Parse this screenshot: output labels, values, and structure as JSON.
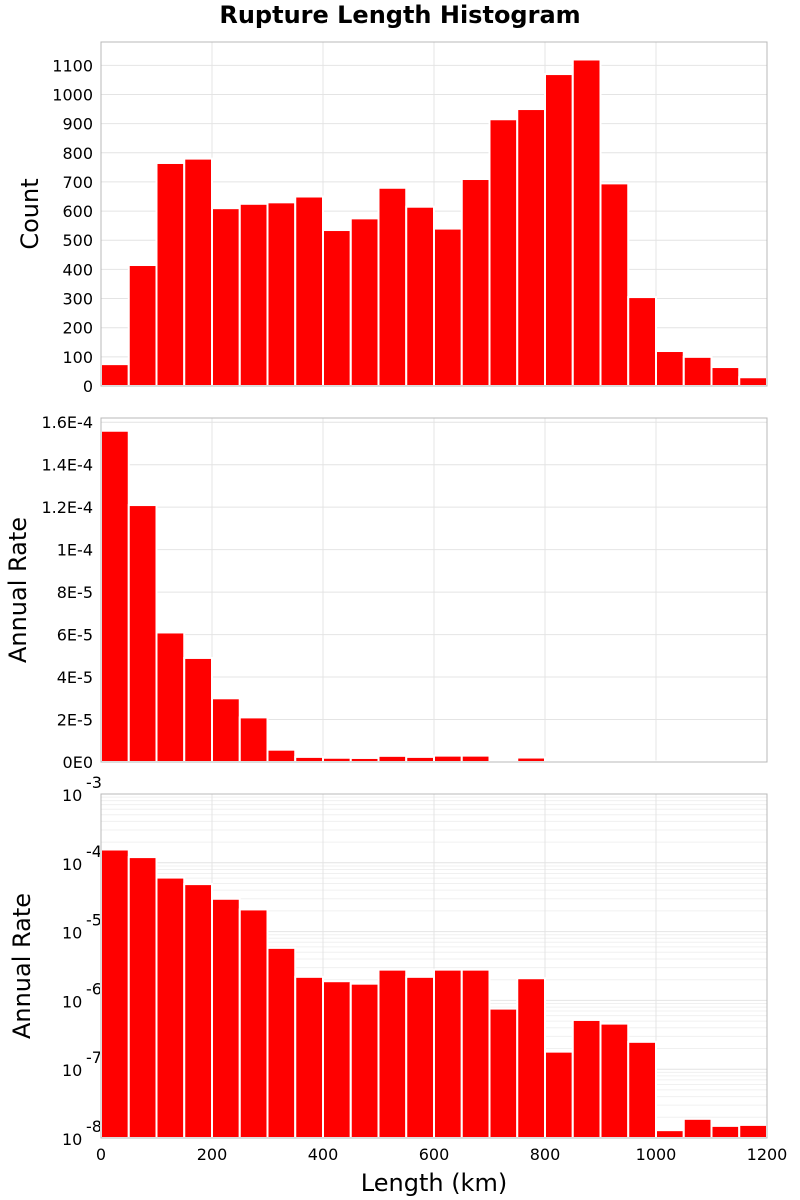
{
  "chart_title": "Rupture Length Histogram",
  "x_label": "Length (km)",
  "colors": {
    "bar": "#ff0000",
    "bar_edge": "#ffffff"
  },
  "chart_data": [
    {
      "type": "bar",
      "title": "Rupture Length Histogram",
      "xlabel": "",
      "ylabel": "Count",
      "bin_width": 50,
      "bin_centers": [
        25,
        75,
        125,
        175,
        225,
        275,
        325,
        375,
        425,
        475,
        525,
        575,
        625,
        675,
        725,
        775,
        825,
        875,
        925,
        975,
        1025,
        1075,
        1125,
        1175
      ],
      "values": [
        75,
        415,
        765,
        780,
        610,
        625,
        630,
        650,
        535,
        575,
        680,
        615,
        540,
        710,
        915,
        950,
        1070,
        1120,
        695,
        305,
        120,
        100,
        65,
        30
      ],
      "xlim": [
        0,
        1200
      ],
      "ylim": [
        0,
        1180
      ],
      "yticks": [
        0,
        100,
        200,
        300,
        400,
        500,
        600,
        700,
        800,
        900,
        1000,
        1100
      ],
      "ytick_labels": [
        "0",
        "100",
        "200",
        "300",
        "400",
        "500",
        "600",
        "700",
        "800",
        "900",
        "1000",
        "1100"
      ],
      "grid": true
    },
    {
      "type": "bar",
      "xlabel": "",
      "ylabel": "Annual Rate",
      "bin_width": 50,
      "bin_centers": [
        25,
        75,
        125,
        175,
        225,
        275,
        325,
        375,
        425,
        475,
        525,
        575,
        625,
        675,
        725,
        775,
        825,
        875,
        925,
        975,
        1025,
        1075,
        1125,
        1175
      ],
      "values": [
        0.000156,
        0.000121,
        6.1e-05,
        4.9e-05,
        3e-05,
        2.1e-05,
        5.8e-06,
        2.4e-06,
        2e-06,
        1.9e-06,
        2.9e-06,
        2.4e-06,
        3e-06,
        3e-06,
        8e-07,
        2.1e-06,
        1.9e-07,
        5.2e-07,
        4.7e-07,
        2.5e-07,
        1.3e-08,
        1.9e-08,
        1.5e-08,
        1.5e-08
      ],
      "xlim": [
        0,
        1200
      ],
      "ylim": [
        0,
        0.000162
      ],
      "yticks": [
        0,
        2e-05,
        4e-05,
        6e-05,
        8e-05,
        0.0001,
        0.00012,
        0.00014,
        0.00016
      ],
      "ytick_labels": [
        "0E0",
        "2E-5",
        "4E-5",
        "6E-5",
        "8E-5",
        "1E-4",
        "1.2E-4",
        "1.4E-4",
        "1.6E-4"
      ],
      "grid": true
    },
    {
      "type": "bar",
      "xlabel": "Length (km)",
      "ylabel": "Annual Rate",
      "yscale": "log",
      "bin_width": 50,
      "bin_centers": [
        25,
        75,
        125,
        175,
        225,
        275,
        325,
        375,
        425,
        475,
        525,
        575,
        625,
        675,
        725,
        775,
        825,
        875,
        925,
        975,
        1025,
        1075,
        1125,
        1175
      ],
      "values": [
        0.000156,
        0.000121,
        6.1e-05,
        4.9e-05,
        3e-05,
        2.1e-05,
        5.8e-06,
        2.2e-06,
        1.9e-06,
        1.75e-06,
        2.8e-06,
        2.2e-06,
        2.8e-06,
        2.8e-06,
        7.6e-07,
        2.1e-06,
        1.8e-07,
        5.2e-07,
        4.6e-07,
        2.5e-07,
        1.3e-08,
        1.9e-08,
        1.5e-08,
        1.55e-08
      ],
      "xlim": [
        0,
        1200
      ],
      "ylim": [
        1e-08,
        0.001
      ],
      "yticks": [
        1e-08,
        1e-07,
        1e-06,
        1e-05,
        0.0001,
        0.001
      ],
      "ytick_exponents": [
        "-8",
        "-7",
        "-6",
        "-5",
        "-4",
        "-3"
      ],
      "ytick_base": "10",
      "xticks": [
        0,
        200,
        400,
        600,
        800,
        1000,
        1200
      ],
      "xtick_labels": [
        "0",
        "200",
        "400",
        "600",
        "800",
        "1000",
        "1200"
      ],
      "grid": true
    }
  ]
}
